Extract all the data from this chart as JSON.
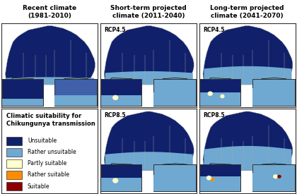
{
  "title_col1": "Recent climate\n(1981-2010)",
  "title_col2": "Short-term projected\nclimate (2011-2040)",
  "title_col3": "Long-term projected\nclimate (2041-2070)",
  "legend_title": "Climatic suitability for\nChikungunya transmission",
  "legend_items": [
    {
      "label": "Unsuitable",
      "color": "#10206b"
    },
    {
      "label": "Rather unsuitable",
      "color": "#6fa8d0"
    },
    {
      "label": "Partly suitable",
      "color": "#ffffcc"
    },
    {
      "label": "Rather suitable",
      "color": "#ff8c00"
    },
    {
      "label": "Suitable",
      "color": "#8b0000"
    }
  ],
  "rcp_labels_row1": [
    "RCP4.5",
    "RCP4.5"
  ],
  "rcp_labels_row2": [
    "RCP8.5",
    "RCP8.5"
  ],
  "background_color": "#ffffff",
  "ocean_color": "#ffffff",
  "canada_unsuitable": "#10206b",
  "canada_rather_unsuitable": "#6fa8d0",
  "canada_partly_suitable": "#ffffcc",
  "canada_rather_suitable": "#ff8c00",
  "canada_suitable": "#8b0000",
  "border_color": "#555555",
  "title_fontsize": 6.5,
  "rcp_fontsize": 5.5,
  "legend_title_fontsize": 6.0,
  "legend_label_fontsize": 5.5
}
